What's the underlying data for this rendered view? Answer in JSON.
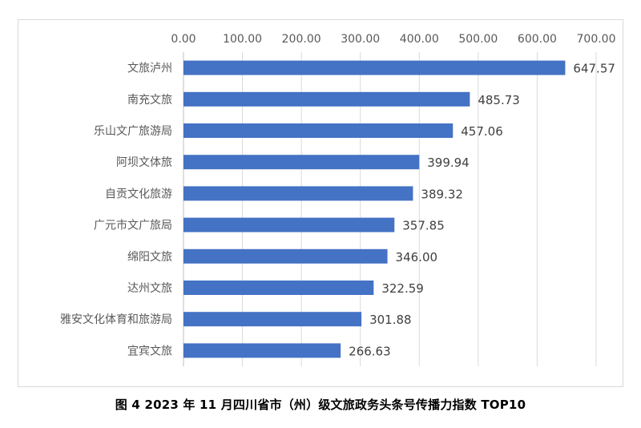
{
  "caption": "图 4  2023 年 11 月四川省市（州）级文旅政务头条号传播力指数 TOP10",
  "colors": {
    "bar": "#4472c4",
    "grid": "#d9d9d9",
    "axis": "#bfbfbf"
  },
  "chart_data": {
    "type": "bar",
    "orientation": "horizontal",
    "title": "",
    "xlabel": "",
    "ylabel": "",
    "xlim": [
      0,
      700
    ],
    "x_ticks": [
      "0.00",
      "100.00",
      "200.00",
      "300.00",
      "400.00",
      "500.00",
      "600.00",
      "700.00"
    ],
    "x_axis_position": "top",
    "grid": true,
    "categories": [
      "文旅泸州",
      "南充文旅",
      "乐山文广旅游局",
      "阿坝文体旅",
      "自贡文化旅游",
      "广元市文广旅局",
      "绵阳文旅",
      "达州文旅",
      "雅安文化体育和旅游局",
      "宜宾文旅"
    ],
    "values": [
      647.57,
      485.73,
      457.06,
      399.94,
      389.32,
      357.85,
      346.0,
      322.59,
      301.88,
      266.63
    ],
    "value_labels": [
      "647.57",
      "485.73",
      "457.06",
      "399.94",
      "389.32",
      "357.85",
      "346.00",
      "322.59",
      "301.88",
      "266.63"
    ]
  }
}
